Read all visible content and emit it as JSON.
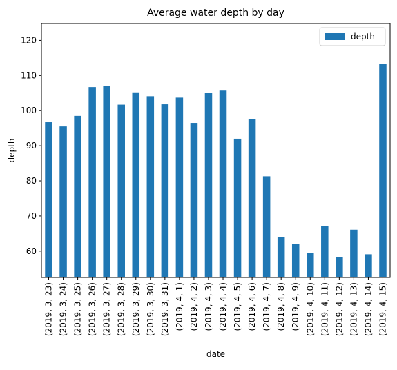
{
  "chart_data": {
    "type": "bar",
    "title": "Average water depth by day",
    "xlabel": "date",
    "ylabel": "depth",
    "ylim": [
      52.5,
      124.8
    ],
    "yticks": [
      60,
      70,
      80,
      90,
      100,
      110,
      120
    ],
    "legend": {
      "position": "top-right",
      "entries": [
        "depth"
      ]
    },
    "bar_color": "#1f77b4",
    "categories": [
      "(2019, 3, 23)",
      "(2019, 3, 24)",
      "(2019, 3, 25)",
      "(2019, 3, 26)",
      "(2019, 3, 27)",
      "(2019, 3, 28)",
      "(2019, 3, 29)",
      "(2019, 3, 30)",
      "(2019, 3, 31)",
      "(2019, 4, 1)",
      "(2019, 4, 2)",
      "(2019, 4, 3)",
      "(2019, 4, 4)",
      "(2019, 4, 5)",
      "(2019, 4, 6)",
      "(2019, 4, 7)",
      "(2019, 4, 8)",
      "(2019, 4, 9)",
      "(2019, 4, 10)",
      "(2019, 4, 11)",
      "(2019, 4, 12)",
      "(2019, 4, 13)",
      "(2019, 4, 14)",
      "(2019, 4, 15)"
    ],
    "series": [
      {
        "name": "depth",
        "values": [
          96.7,
          95.5,
          98.5,
          106.7,
          107.1,
          101.7,
          105.2,
          104.1,
          101.8,
          103.7,
          96.5,
          105.1,
          105.7,
          92.0,
          97.6,
          81.3,
          63.9,
          62.1,
          59.4,
          67.1,
          58.2,
          66.1,
          59.1,
          113.3
        ]
      }
    ]
  }
}
